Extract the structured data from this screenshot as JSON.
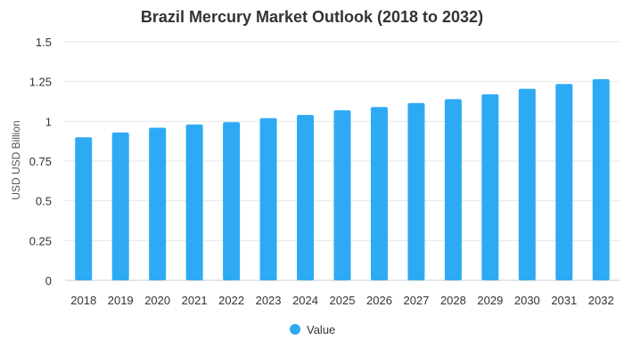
{
  "colors": {
    "bar": "#2eaaf5",
    "grid": "#e6e6e6",
    "text": "#333333"
  },
  "chart_data": {
    "type": "bar",
    "title": "Brazil Mercury Market Outlook (2018 to 2032)",
    "xlabel": "",
    "ylabel": "USD USD Billion",
    "categories": [
      "2018",
      "2019",
      "2020",
      "2021",
      "2022",
      "2023",
      "2024",
      "2025",
      "2026",
      "2027",
      "2028",
      "2029",
      "2030",
      "2031",
      "2032"
    ],
    "series": [
      {
        "name": "Value",
        "values": [
          0.9,
          0.93,
          0.96,
          0.98,
          0.995,
          1.02,
          1.04,
          1.07,
          1.09,
          1.115,
          1.14,
          1.17,
          1.205,
          1.235,
          1.265
        ]
      }
    ],
    "ylim": [
      0,
      1.5
    ],
    "yticks": [
      "0",
      "0.25",
      "0.5",
      "0.75",
      "1",
      "1.25",
      "1.5"
    ],
    "grid": true,
    "legend": "bottom-center"
  }
}
